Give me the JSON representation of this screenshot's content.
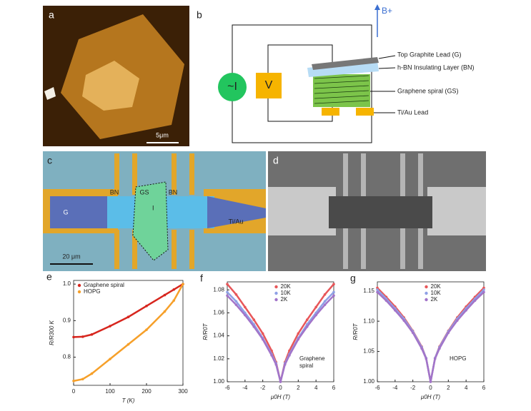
{
  "panels": {
    "a": {
      "letter": "a",
      "scale": "5μm"
    },
    "b": {
      "letter": "b",
      "source": "~I",
      "meter": "V",
      "field": "B+",
      "top_lead": "Top Graphite Lead (G)",
      "bn_layer": "h-BN Insulating Layer (BN)",
      "spiral": "Graphene spiral (GS)",
      "lead": "Ti/Au Lead"
    },
    "c": {
      "letter": "c",
      "bn_left": "BN",
      "gs": "GS",
      "bn_right": "BN",
      "g": "G",
      "current": "I",
      "tiau": "Ti/Au",
      "scale": "20 μm"
    },
    "d": {
      "letter": "d"
    }
  },
  "chart_data": [
    {
      "panel_label": "e",
      "type": "line",
      "x_label": "T (K)",
      "y_label": "R/R300 K",
      "legend": "upper left",
      "x": [
        0,
        25,
        50,
        100,
        150,
        200,
        250,
        275,
        300
      ],
      "series": [
        {
          "name": "Graphene spiral",
          "color": "#d7261e",
          "values": [
            0.855,
            0.856,
            0.862,
            0.885,
            0.91,
            0.94,
            0.97,
            0.985,
            1.0
          ]
        },
        {
          "name": "HOPG",
          "color": "#f6a02a",
          "values": [
            0.735,
            0.74,
            0.755,
            0.795,
            0.835,
            0.875,
            0.925,
            0.955,
            1.0
          ]
        }
      ],
      "xlim": [
        0,
        300
      ],
      "xticks": [
        0,
        100,
        200,
        300
      ],
      "ylim": [
        0.723,
        1.01
      ],
      "yticks": [
        0.8,
        0.9,
        {
          "value": 1.0,
          "label": "1.0"
        }
      ]
    },
    {
      "panel_label": "f",
      "type": "line",
      "x_label": "μ0H (T)",
      "y_label": "R/R0T",
      "legend": "upper center",
      "annotation": [
        "Graphene",
        "spiral"
      ],
      "x": [
        -6,
        -5,
        -4,
        -3,
        -2,
        -1,
        -0.5,
        0,
        0.5,
        1,
        2,
        3,
        4,
        5,
        6
      ],
      "series": [
        {
          "name": "20K",
          "color": "#e8575a",
          "values": [
            1.085,
            1.076,
            1.065,
            1.054,
            1.042,
            1.027,
            1.017,
            1.0,
            1.017,
            1.027,
            1.042,
            1.054,
            1.065,
            1.076,
            1.085
          ]
        },
        {
          "name": "10K",
          "color": "#8fa0e6",
          "values": [
            1.078,
            1.07,
            1.06,
            1.05,
            1.038,
            1.024,
            1.016,
            1.0,
            1.016,
            1.024,
            1.038,
            1.05,
            1.06,
            1.07,
            1.078
          ]
        },
        {
          "name": "2K",
          "color": "#a274c9",
          "values": [
            1.075,
            1.067,
            1.058,
            1.048,
            1.037,
            1.023,
            1.015,
            1.0,
            1.015,
            1.023,
            1.037,
            1.048,
            1.058,
            1.067,
            1.075
          ]
        }
      ],
      "xlim": [
        -6,
        6
      ],
      "xticks": [
        -6,
        -4,
        -2,
        0,
        2,
        4,
        6
      ],
      "ylim": [
        1.0,
        1.087
      ],
      "yticks": [
        {
          "value": 1.0,
          "label": "1.00"
        },
        1.02,
        1.04,
        1.06,
        1.08
      ]
    },
    {
      "panel_label": "g",
      "type": "line",
      "x_label": "μ0H (T)",
      "y_label": "R/R0T",
      "legend": "upper center",
      "annotation": [
        "HOPG"
      ],
      "x": [
        -6,
        -5,
        -4,
        -3,
        -2,
        -1,
        -0.5,
        0,
        0.5,
        1,
        2,
        3,
        4,
        5,
        6
      ],
      "series": [
        {
          "name": "20K",
          "color": "#e8575a",
          "values": [
            1.155,
            1.14,
            1.124,
            1.106,
            1.084,
            1.058,
            1.039,
            1.0,
            1.039,
            1.058,
            1.084,
            1.106,
            1.124,
            1.14,
            1.155
          ]
        },
        {
          "name": "10K",
          "color": "#8fa0e6",
          "values": [
            1.152,
            1.137,
            1.121,
            1.104,
            1.083,
            1.057,
            1.039,
            1.0,
            1.039,
            1.057,
            1.083,
            1.104,
            1.121,
            1.137,
            1.152
          ]
        },
        {
          "name": "2K",
          "color": "#a274c9",
          "values": [
            1.148,
            1.134,
            1.118,
            1.101,
            1.081,
            1.055,
            1.038,
            1.0,
            1.038,
            1.055,
            1.081,
            1.101,
            1.118,
            1.134,
            1.148
          ]
        }
      ],
      "xlim": [
        -6,
        6
      ],
      "xticks": [
        -6,
        -4,
        -2,
        0,
        2,
        4,
        6
      ],
      "ylim": [
        1.0,
        1.165
      ],
      "yticks": [
        {
          "value": 1.0,
          "label": "1.00"
        },
        1.05,
        {
          "value": 1.1,
          "label": "1.10"
        },
        1.15
      ]
    }
  ]
}
